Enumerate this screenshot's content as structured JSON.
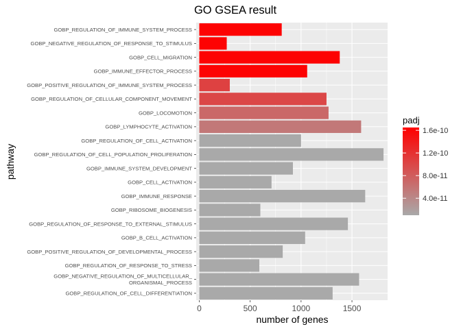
{
  "chart_data": {
    "type": "bar",
    "orientation": "horizontal",
    "title": "GO GSEA result",
    "xlabel": "number of genes",
    "ylabel": "pathway",
    "xlim": [
      -30,
      1850
    ],
    "xticks": [
      0,
      500,
      1000,
      1500
    ],
    "grid": true,
    "legend": {
      "title": "padj",
      "placement": "right",
      "labels": [
        "1.6e-10",
        "1.2e-10",
        "8.0e-11",
        "4.0e-11"
      ],
      "label_values": [
        1.6e-10,
        1.2e-10,
        8e-11,
        4e-11
      ],
      "range": [
        1e-11,
        1.65e-10
      ],
      "color_low": "#A9A9A9",
      "color_high": "#FF0000"
    },
    "categories": [
      "GOBP_REGULATION_OF_IMMUNE_SYSTEM_PROCESS",
      "GOBP_NEGATIVE_REGULATION_OF_RESPONSE_TO_STIMULUS",
      "GOBP_CELL_MIGRATION",
      "GOBP_IMMUNE_EFFECTOR_PROCESS",
      "GOBP_POSITIVE_REGULATION_OF_IMMUNE_SYSTEM_PROCESS",
      "GOBP_REGULATION_OF_CELLULAR_COMPONENT_MOVEMENT",
      "GOBP_LOCOMOTION",
      "GOBP_LYMPHOCYTE_ACTIVATION",
      "GOBP_REGULATION_OF_CELL_ACTIVATION",
      "GOBP_REGULATION_OF_CELL_POPULATION_PROLIFERATION",
      "GOBP_IMMUNE_SYSTEM_DEVELOPMENT",
      "GOBP_CELL_ACTIVATION",
      "GOBP_IMMUNE_RESPONSE",
      "GOBP_RIBOSOME_BIOGENESIS",
      "GOBP_REGULATION_OF_RESPONSE_TO_EXTERNAL_STIMULUS",
      "GOBP_B_CELL_ACTIVATION",
      "GOBP_POSITIVE_REGULATION_OF_DEVELOPMENTAL_PROCESS",
      "GOBP_REGULATION_OF_RESPONSE_TO_STRESS",
      "GOBP_NEGATIVE_REGULATION_OF_MULTICELLULAR_\nORGANISMAL_PROCESS",
      "GOBP_REGULATION_OF_CELL_DIFFERENTIATION"
    ],
    "values": [
      810,
      270,
      1380,
      1060,
      300,
      1250,
      1270,
      1590,
      1000,
      1810,
      920,
      710,
      1630,
      600,
      1460,
      1040,
      820,
      590,
      1570,
      1310
    ],
    "padj": [
      1.62e-10,
      1.62e-10,
      1.62e-10,
      1.62e-10,
      1.05e-10,
      1e-10,
      7e-11,
      5.5e-11,
      1e-11,
      1e-11,
      1e-11,
      1e-11,
      1e-11,
      1e-11,
      1e-11,
      1e-11,
      1e-11,
      1e-11,
      1e-11,
      1e-11
    ]
  }
}
